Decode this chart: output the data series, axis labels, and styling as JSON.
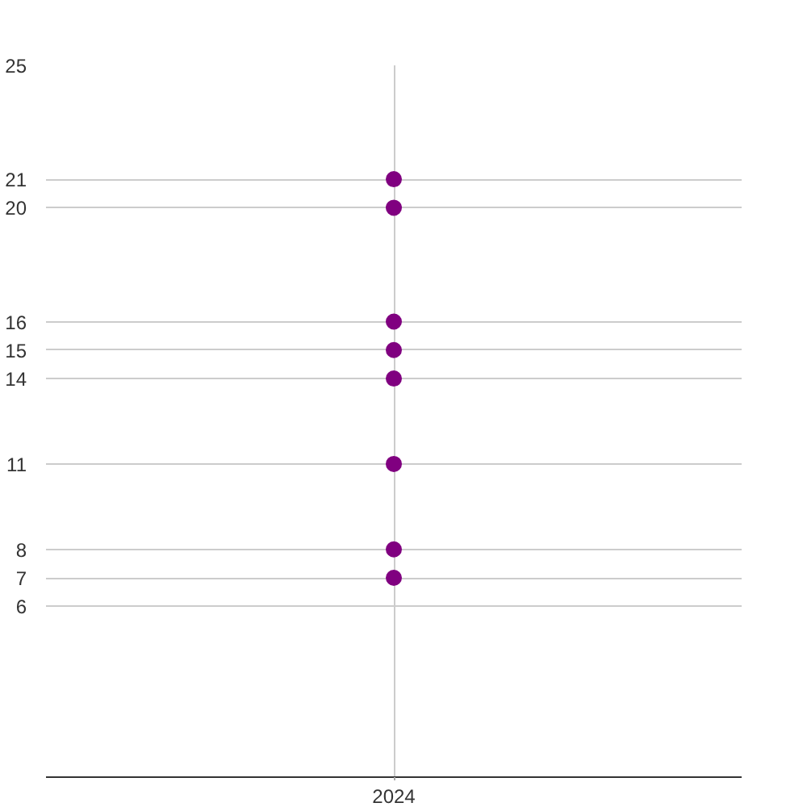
{
  "chart_data": {
    "type": "scatter",
    "categories": [
      "2024"
    ],
    "series": [
      {
        "color": "#800080",
        "values": [
          21
        ]
      },
      {
        "color": "#800080",
        "values": [
          20
        ]
      },
      {
        "color": "#800080",
        "values": [
          16
        ]
      },
      {
        "color": "#800080",
        "values": [
          15
        ]
      },
      {
        "color": "#800080",
        "values": [
          14
        ]
      },
      {
        "color": "#800080",
        "values": [
          11
        ]
      },
      {
        "color": "#800080",
        "values": [
          8
        ]
      },
      {
        "color": "#800080",
        "values": [
          7
        ]
      }
    ],
    "ylim": [
      0,
      25
    ],
    "yticks": [
      6,
      7,
      8,
      11,
      14,
      15,
      16,
      20,
      21,
      25
    ],
    "grid": true,
    "marker": "circle"
  }
}
